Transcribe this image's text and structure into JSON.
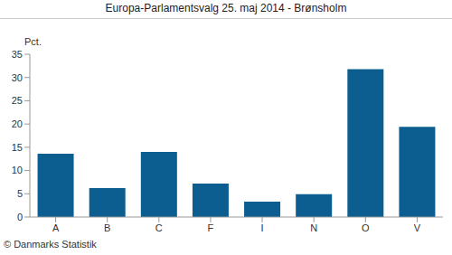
{
  "chart_data": {
    "type": "bar",
    "title": "Europa-Parlamentsvalg 25. maj 2014 - Brønsholm",
    "y_label": "Pct.",
    "source": "© Danmarks Statistik",
    "categories": [
      "A",
      "B",
      "C",
      "F",
      "I",
      "N",
      "O",
      "V"
    ],
    "values": [
      13.6,
      6.2,
      14.0,
      7.2,
      3.3,
      4.9,
      31.8,
      19.4
    ],
    "color": "#0b5e8f",
    "ylim": [
      0,
      35
    ],
    "yticks": [
      0,
      5,
      10,
      15,
      20,
      25,
      30,
      35
    ],
    "grid": false
  }
}
